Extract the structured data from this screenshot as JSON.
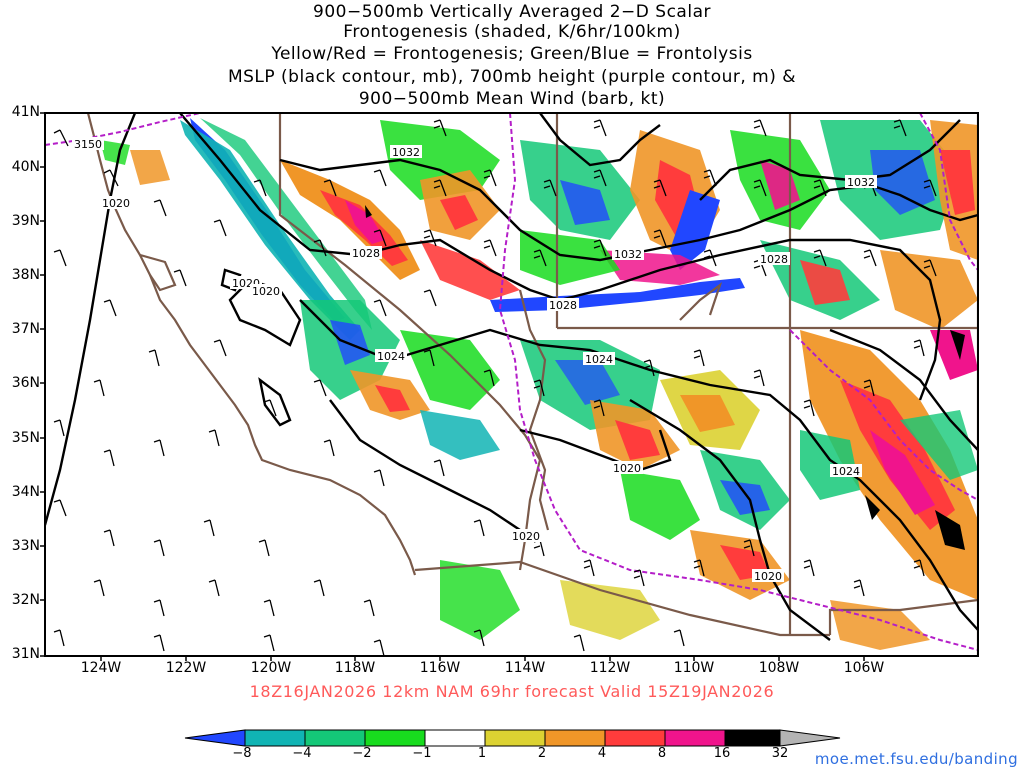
{
  "title": {
    "line1": "900−500mb Vertically Averaged 2−D Scalar",
    "line2": "Frontogenesis (shaded, K/6hr/100km)",
    "line3": "Yellow/Red = Frontogenesis;  Green/Blue = Frontolysis",
    "line4": "MSLP (black contour, mb), 700mb height (purple contour, m) &",
    "line5": "900−500mb Mean Wind (barb, kt)"
  },
  "lat_labels": [
    "41N",
    "40N",
    "39N",
    "38N",
    "37N",
    "36N",
    "35N",
    "34N",
    "33N",
    "32N",
    "31N"
  ],
  "lon_labels": [
    "124W",
    "122W",
    "120W",
    "118W",
    "116W",
    "114W",
    "112W",
    "110W",
    "108W",
    "106W"
  ],
  "caption": "18Z16JAN2026 12km NAM 69hr forecast Valid 15Z19JAN2026",
  "colorbar": {
    "labels": [
      "−8",
      "−4",
      "−2",
      "−1",
      "1",
      "2",
      "4",
      "8",
      "16",
      "32"
    ],
    "colors": [
      "#2147ff",
      "#10b4b4",
      "#14c878",
      "#18dc1e",
      "#ffffff",
      "#dcd232",
      "#f09628",
      "#ff3c3c",
      "#f0148c",
      "#000000",
      "#b4b4b4"
    ]
  },
  "contour_labels": {
    "mslp": [
      "1032",
      "1032",
      "1028",
      "1032",
      "1028",
      "1028",
      "1020",
      "1020",
      "1020",
      "1024",
      "1024",
      "1020",
      "1024",
      "1020",
      "1020"
    ],
    "height": [
      "3150"
    ]
  },
  "credit": "moe.met.fsu.edu/banding"
}
